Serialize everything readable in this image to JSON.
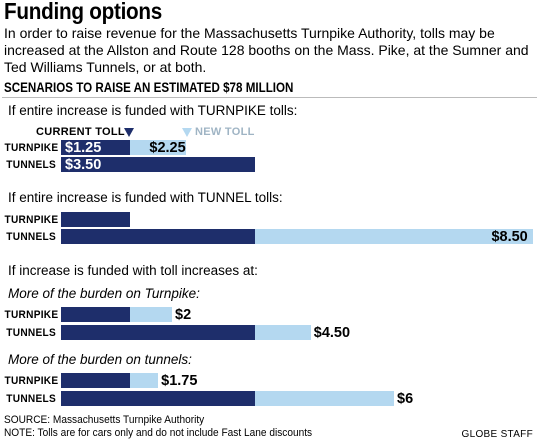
{
  "title": "Funding options",
  "intro": "In order to raise revenue for the Massachusetts Turnpike Authority, tolls may be increased at the Allston and Route 128 booths on the Mass. Pike, at the Sumner and Ted Williams Tunnels, or at both.",
  "subhead": "SCENARIOS TO RAISE AN ESTIMATED $78 MILLION",
  "legend": {
    "current": "CURRENT TOLL",
    "new": "NEW TOLL"
  },
  "colors": {
    "current": "#1e2e6b",
    "new": "#b4d8f0"
  },
  "chart_data": {
    "type": "bar",
    "orientation": "horizontal",
    "categories": [
      "TURNPIKE",
      "TUNNELS"
    ],
    "current_toll": {
      "TURNPIKE": 1.25,
      "TUNNELS": 3.5
    },
    "current_toll_labels": {
      "TURNPIKE": "$1.25",
      "TUNNELS": "$3.50"
    },
    "scenarios": [
      {
        "heading": "If entire increase is funded with TURNPIKE tolls:",
        "subheading": "",
        "new_toll": {
          "TURNPIKE": 2.25,
          "TUNNELS": null
        },
        "new_labels": {
          "TURNPIKE": "$2.25",
          "TUNNELS": ""
        }
      },
      {
        "heading": "If entire increase is funded with TUNNEL tolls:",
        "subheading": "",
        "new_toll": {
          "TURNPIKE": null,
          "TUNNELS": 8.5
        },
        "new_labels": {
          "TURNPIKE": "",
          "TUNNELS": "$8.50"
        }
      },
      {
        "heading": "If increase is funded with toll increases at:",
        "subheading": "More of the burden on Turnpike:",
        "new_toll": {
          "TURNPIKE": 2.0,
          "TUNNELS": 4.5
        },
        "new_labels": {
          "TURNPIKE": "$2",
          "TUNNELS": "$4.50"
        }
      },
      {
        "heading": "",
        "subheading": "More of the burden on tunnels:",
        "new_toll": {
          "TURNPIKE": 1.75,
          "TUNNELS": 6.0
        },
        "new_labels": {
          "TURNPIKE": "$1.75",
          "TUNNELS": "$6"
        }
      }
    ]
  },
  "source": "SOURCE: Massachusetts Turnpike Authority",
  "note": "NOTE: Tolls are for cars only and do not include Fast Lane discounts",
  "credit": "GLOBE STAFF"
}
